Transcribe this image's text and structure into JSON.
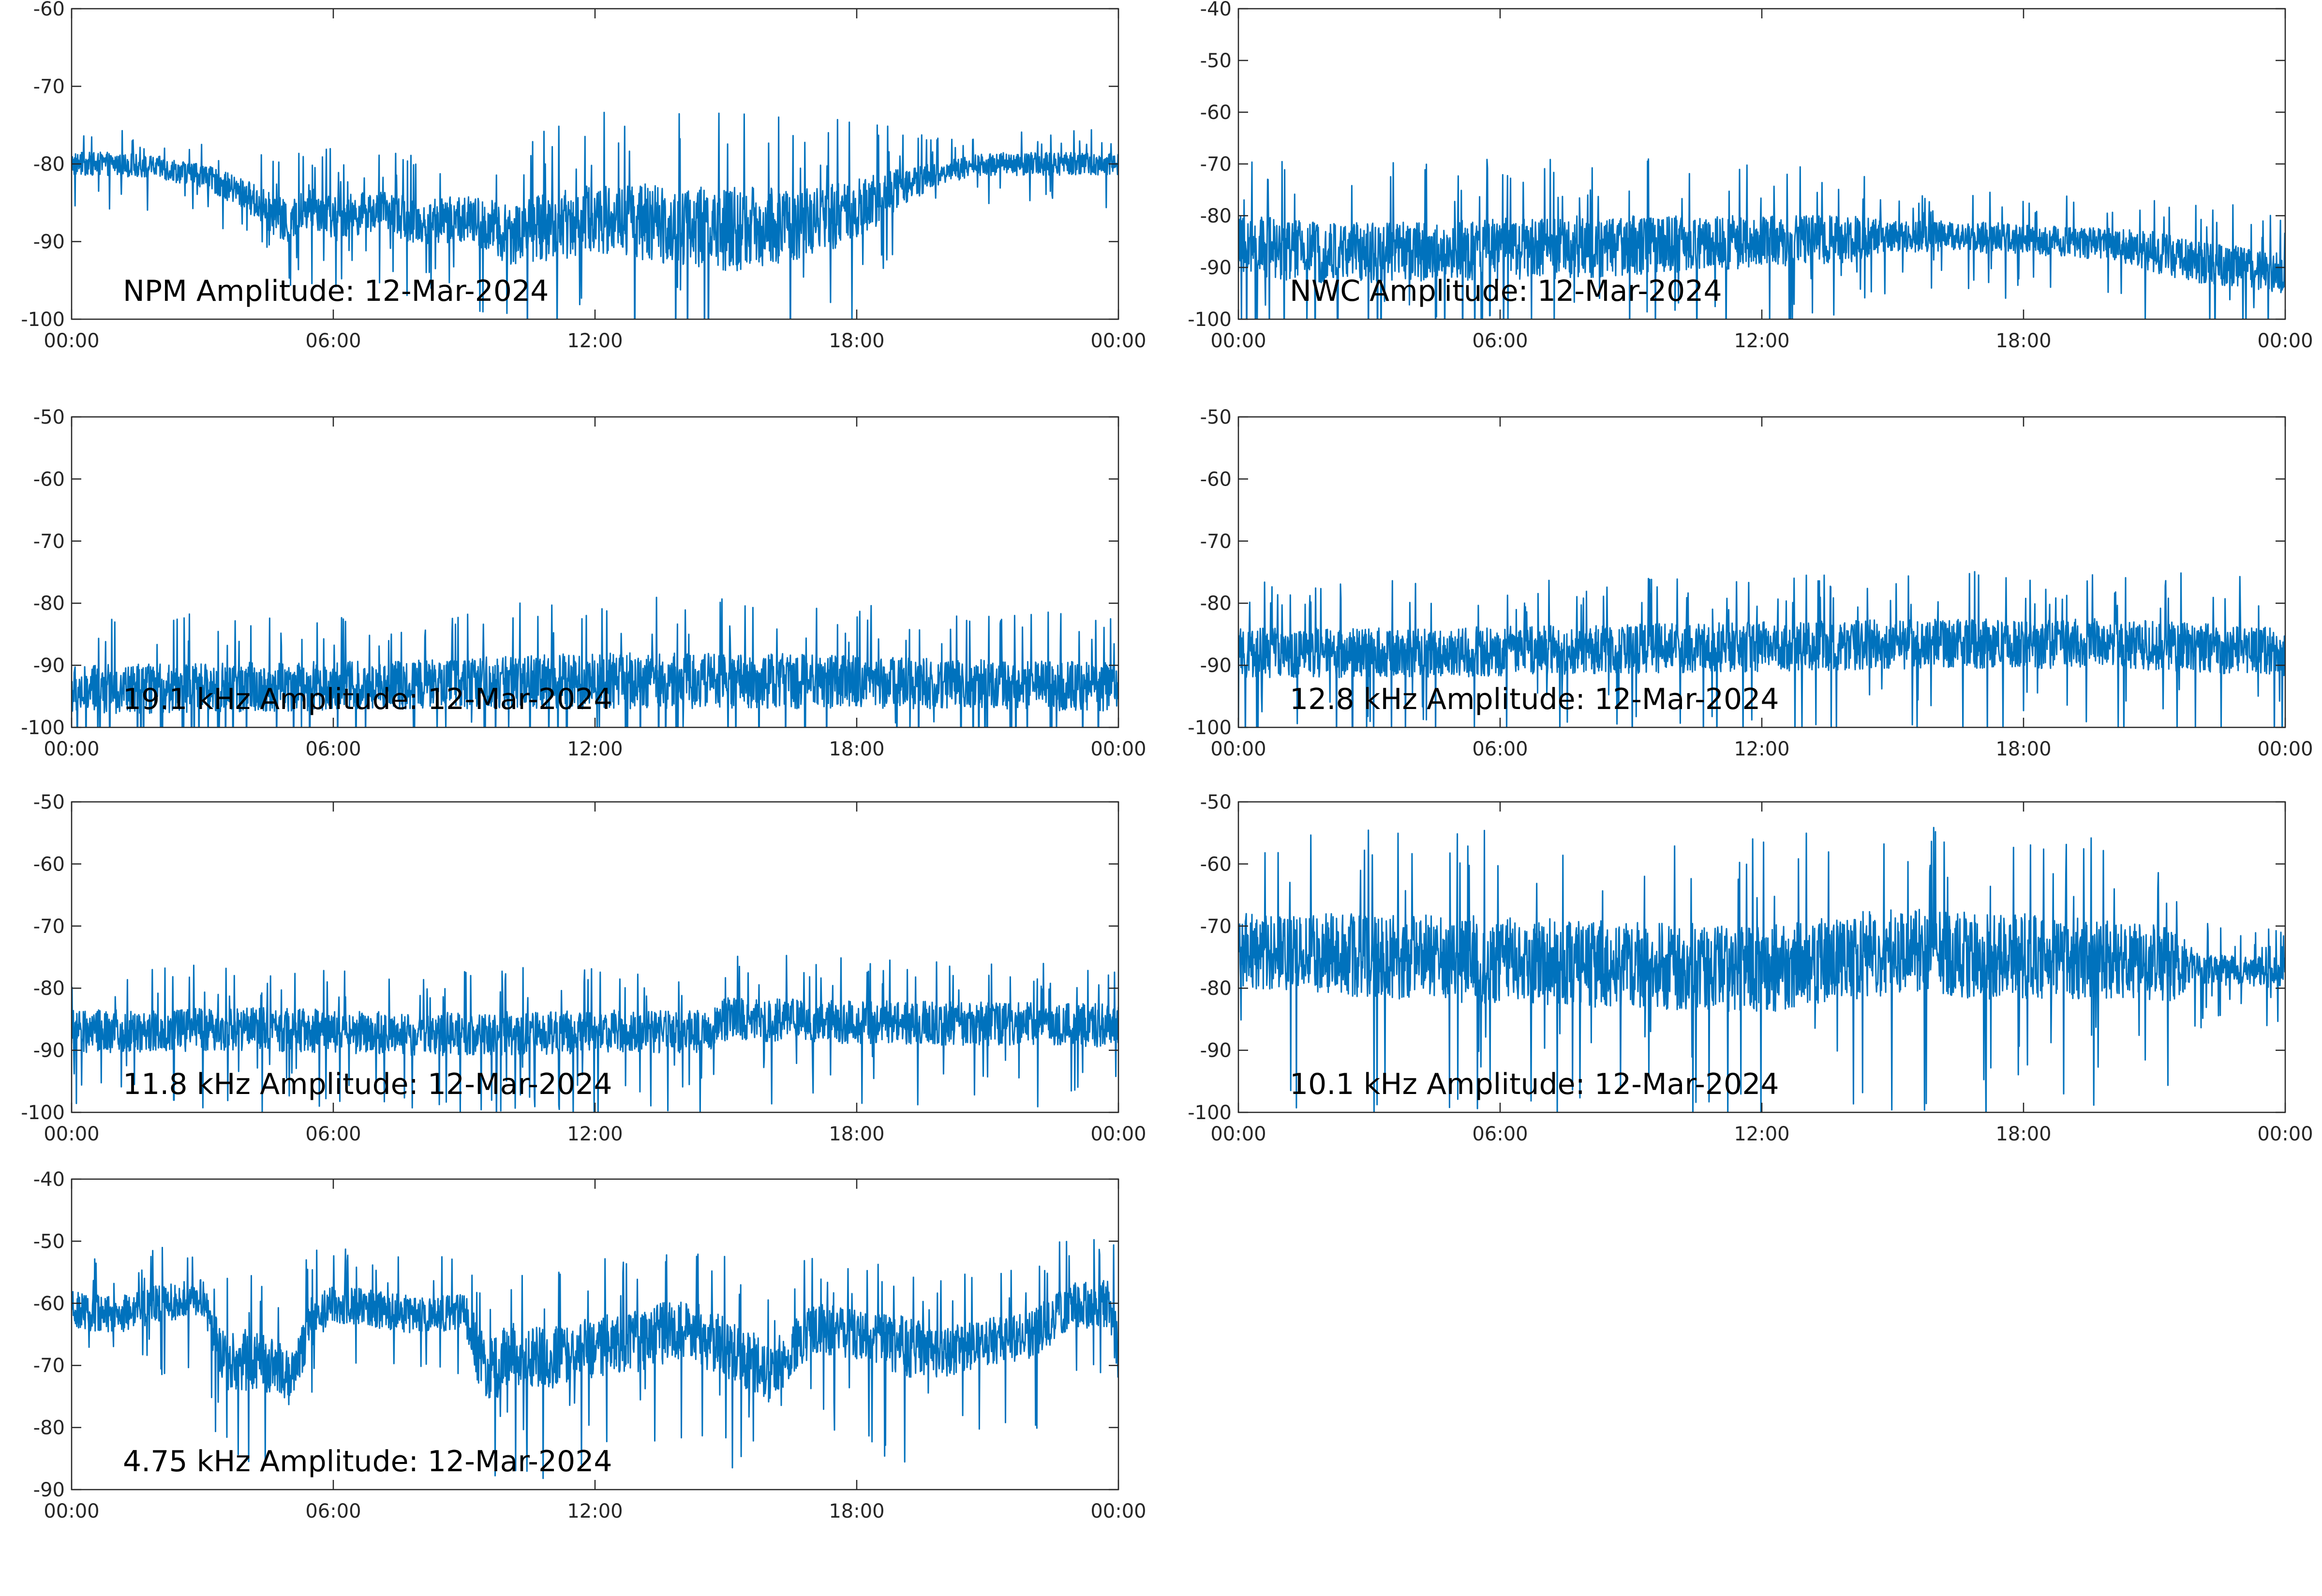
{
  "figure": {
    "background": "#ffffff",
    "axis_color": "#262626",
    "line_color": "#0072bd",
    "x_tick_labels": [
      "00:00",
      "06:00",
      "12:00",
      "18:00",
      "00:00"
    ]
  },
  "chart_data": [
    {
      "type": "line",
      "title": "NPM Amplitude: 12-Mar-2024",
      "xlabel": "",
      "ylabel": "",
      "x_range_hours": [
        0,
        24
      ],
      "ylim": [
        -100,
        -60
      ],
      "y_ticks": [
        -60,
        -70,
        -80,
        -90,
        -100
      ],
      "grid": false,
      "series": [
        {
          "x_hours": [
            0,
            1,
            2,
            3,
            4,
            5,
            5.5,
            6,
            7,
            8,
            9,
            10,
            11,
            12,
            13,
            14,
            15,
            16,
            17,
            18,
            19,
            20,
            21,
            22,
            23,
            24
          ],
          "mean": [
            -80,
            -80,
            -80.5,
            -81.5,
            -84,
            -88,
            -85,
            -87,
            -86,
            -87.5,
            -87,
            -89,
            -88,
            -87,
            -87.5,
            -88,
            -88.5,
            -88,
            -87.5,
            -86,
            -83,
            -81,
            -80,
            -80,
            -80,
            -80
          ],
          "spread": [
            1.5,
            1.5,
            1.5,
            1.5,
            2,
            3,
            3,
            3,
            2.5,
            3,
            3,
            4,
            4.5,
            4.5,
            5,
            5,
            5.5,
            5,
            4.5,
            4,
            2.5,
            1.5,
            1.5,
            1.5,
            1.5,
            1.5
          ]
        }
      ]
    },
    {
      "type": "line",
      "title": "NWC Amplitude: 12-Mar-2024",
      "xlabel": "",
      "ylabel": "",
      "x_range_hours": [
        0,
        24
      ],
      "ylim": [
        -100,
        -40
      ],
      "y_ticks": [
        -40,
        -50,
        -60,
        -70,
        -80,
        -90,
        -100
      ],
      "grid": false,
      "series": [
        {
          "x_hours": [
            0,
            2,
            4,
            6,
            8,
            10,
            12,
            14,
            15,
            16,
            18,
            20,
            21,
            22,
            23,
            24
          ],
          "mean": [
            -86,
            -87,
            -87,
            -86.5,
            -86,
            -85.5,
            -85,
            -84.5,
            -84,
            -84,
            -84.5,
            -85.5,
            -87,
            -89,
            -90,
            -91
          ],
          "spread": [
            6,
            6,
            6,
            6,
            6,
            5.5,
            5,
            4.5,
            3,
            3,
            3,
            3,
            4,
            4,
            4,
            4
          ]
        }
      ]
    },
    {
      "type": "line",
      "title": "19.1 kHz Amplitude: 12-Mar-2024",
      "xlabel": "",
      "ylabel": "",
      "x_range_hours": [
        0,
        24
      ],
      "ylim": [
        -100,
        -50
      ],
      "y_ticks": [
        -50,
        -60,
        -70,
        -80,
        -90,
        -100
      ],
      "grid": false,
      "series": [
        {
          "x_hours": [
            0,
            4,
            8,
            12,
            16,
            20,
            24
          ],
          "mean": [
            -94,
            -93.5,
            -93,
            -92.5,
            -92.5,
            -93,
            -93.5
          ],
          "spread": [
            4,
            4,
            4,
            4.5,
            4.5,
            4,
            4
          ]
        }
      ]
    },
    {
      "type": "line",
      "title": "12.8 kHz Amplitude: 12-Mar-2024",
      "xlabel": "",
      "ylabel": "",
      "x_range_hours": [
        0,
        24
      ],
      "ylim": [
        -100,
        -50
      ],
      "y_ticks": [
        -50,
        -60,
        -70,
        -80,
        -90,
        -100
      ],
      "grid": false,
      "series": [
        {
          "x_hours": [
            0,
            4,
            8,
            12,
            16,
            20,
            24
          ],
          "mean": [
            -88,
            -88,
            -87.5,
            -87,
            -86.5,
            -86.5,
            -88
          ],
          "spread": [
            4,
            4,
            4,
            4,
            4,
            4,
            4
          ]
        }
      ]
    },
    {
      "type": "line",
      "title": "11.8 kHz Amplitude: 12-Mar-2024",
      "xlabel": "",
      "ylabel": "",
      "x_range_hours": [
        0,
        24
      ],
      "ylim": [
        -100,
        -50
      ],
      "y_ticks": [
        -50,
        -60,
        -70,
        -80,
        -90,
        -100
      ],
      "grid": false,
      "series": [
        {
          "x_hours": [
            0,
            4,
            8,
            12,
            14.5,
            15,
            18,
            24
          ],
          "mean": [
            -87,
            -86.5,
            -87.5,
            -87,
            -87,
            -85,
            -85.5,
            -86
          ],
          "spread": [
            3.5,
            3.5,
            3.5,
            3.5,
            3.5,
            3.5,
            3.5,
            3.5
          ]
        }
      ]
    },
    {
      "type": "line",
      "title": "10.1 kHz Amplitude: 12-Mar-2024",
      "xlabel": "",
      "ylabel": "",
      "x_range_hours": [
        0,
        24
      ],
      "ylim": [
        -100,
        -50
      ],
      "y_ticks": [
        -50,
        -60,
        -70,
        -80,
        -90,
        -100
      ],
      "grid": false,
      "series": [
        {
          "x_hours": [
            0,
            4,
            8,
            12,
            15,
            18,
            21.5,
            22,
            24
          ],
          "mean": [
            -74,
            -75,
            -76,
            -77,
            -74,
            -75,
            -76,
            -77,
            -77.5
          ],
          "spread": [
            6,
            7,
            7,
            7,
            7,
            7,
            6,
            2.5,
            2.5
          ]
        }
      ]
    },
    {
      "type": "line",
      "title": "4.75 kHz Amplitude: 12-Mar-2024",
      "xlabel": "",
      "ylabel": "",
      "x_range_hours": [
        0,
        24
      ],
      "ylim": [
        -90,
        -40
      ],
      "y_ticks": [
        -40,
        -50,
        -60,
        -70,
        -80,
        -90
      ],
      "grid": false,
      "series": [
        {
          "x_hours": [
            0,
            1,
            2,
            3,
            3.5,
            4,
            5,
            5.5,
            6,
            7,
            8,
            9,
            9.5,
            10,
            11,
            12,
            13,
            14,
            15,
            16,
            17,
            18,
            19,
            20,
            21,
            22,
            23,
            23.8,
            24
          ],
          "mean": [
            -61,
            -62,
            -60,
            -59,
            -70,
            -69,
            -72,
            -63,
            -60,
            -61,
            -62,
            -61,
            -72,
            -68,
            -69,
            -67,
            -66,
            -64,
            -67,
            -71,
            -64,
            -65,
            -67,
            -68,
            -66,
            -65,
            -60,
            -60,
            -70
          ],
          "spread": [
            3,
            3,
            3,
            3,
            5,
            5,
            5,
            4,
            3,
            3,
            3,
            3,
            6,
            5,
            5,
            5,
            5,
            5,
            5,
            5,
            4,
            4,
            5,
            4,
            4,
            4,
            4,
            4,
            6
          ]
        }
      ]
    }
  ]
}
